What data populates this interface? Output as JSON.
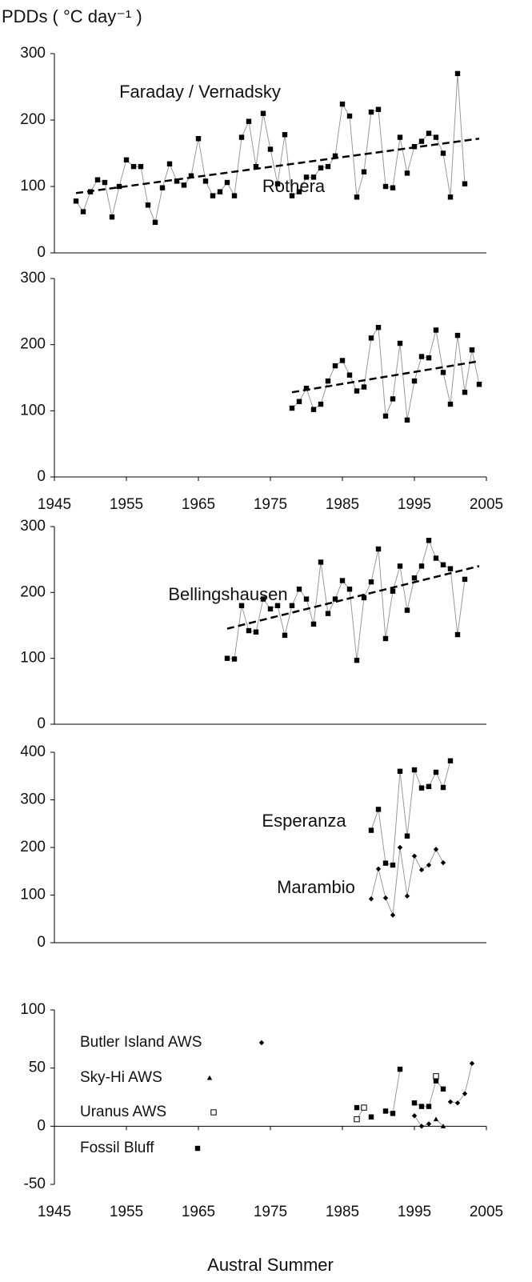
{
  "y_label": "PDDs ( °C day⁻¹ )",
  "x_label": "Austral Summer",
  "chart_data": [
    {
      "type": "line",
      "xlim": [
        1945,
        2005
      ],
      "ylim": [
        0,
        300
      ],
      "yticks": [
        0,
        100,
        200,
        300
      ],
      "series": [
        {
          "name": "Faraday / Vernadsky",
          "color": "#999999",
          "marker": "square",
          "x": [
            1948,
            1949,
            1950,
            1951,
            1952,
            1953,
            1954,
            1955,
            1956,
            1957,
            1958,
            1959,
            1960,
            1961,
            1962,
            1963,
            1964,
            1965,
            1966,
            1967,
            1968,
            1969,
            1970,
            1971,
            1972,
            1973,
            1974,
            1975,
            1976,
            1977,
            1978,
            1979,
            1980,
            1981,
            1982,
            1983,
            1984,
            1985,
            1986,
            1987,
            1988,
            1989,
            1990,
            1991,
            1992,
            1993,
            1994,
            1995,
            1996,
            1997,
            1998,
            1999,
            2000,
            2001,
            2002
          ],
          "values": [
            78,
            62,
            92,
            110,
            106,
            54,
            100,
            140,
            130,
            130,
            72,
            46,
            98,
            134,
            108,
            102,
            116,
            172,
            108,
            86,
            92,
            106,
            86,
            174,
            198,
            130,
            210,
            156,
            104,
            178,
            86,
            92,
            114,
            114,
            128,
            130,
            146,
            224,
            206,
            84,
            122,
            212,
            216,
            100,
            98,
            174,
            120,
            160,
            168,
            180,
            174,
            150,
            84,
            270,
            104
          ]
        },
        {
          "color": "#000000",
          "dashed": true,
          "x": [
            1948,
            2004
          ],
          "values": [
            90,
            172
          ]
        }
      ]
    },
    {
      "type": "line",
      "xlim": [
        1945,
        2005
      ],
      "ylim": [
        0,
        300
      ],
      "yticks": [
        0,
        100,
        200,
        300
      ],
      "xticks": [
        1945,
        1955,
        1965,
        1975,
        1985,
        1995,
        2005
      ],
      "series": [
        {
          "name": "Rothera",
          "color": "#999999",
          "marker": "square",
          "x": [
            1978,
            1979,
            1980,
            1981,
            1982,
            1983,
            1984,
            1985,
            1986,
            1987,
            1988,
            1989,
            1990,
            1991,
            1992,
            1993,
            1994,
            1995,
            1996,
            1997,
            1998,
            1999,
            2000,
            2001,
            2002,
            2003,
            2004
          ],
          "values": [
            104,
            114,
            134,
            102,
            110,
            145,
            168,
            176,
            154,
            130,
            136,
            210,
            226,
            92,
            118,
            202,
            86,
            145,
            182,
            180,
            222,
            158,
            110,
            214,
            128,
            192,
            140
          ]
        },
        {
          "color": "#000000",
          "dashed": true,
          "x": [
            1978,
            2004
          ],
          "values": [
            128,
            175
          ]
        }
      ]
    },
    {
      "type": "line",
      "xlim": [
        1945,
        2005
      ],
      "ylim": [
        0,
        300
      ],
      "yticks": [
        0,
        100,
        200,
        300
      ],
      "series": [
        {
          "name": "Bellingshausen",
          "color": "#999999",
          "marker": "square",
          "x": [
            1969,
            1970,
            1971,
            1972,
            1973,
            1974,
            1975,
            1976,
            1977,
            1978,
            1979,
            1980,
            1981,
            1982,
            1983,
            1984,
            1985,
            1986,
            1987,
            1988,
            1989,
            1990,
            1991,
            1992,
            1993,
            1994,
            1995,
            1996,
            1997,
            1998,
            1999,
            2000,
            2001,
            2002
          ],
          "values": [
            100,
            99,
            180,
            142,
            140,
            190,
            175,
            180,
            135,
            180,
            205,
            190,
            152,
            246,
            168,
            190,
            218,
            205,
            97,
            192,
            216,
            266,
            130,
            202,
            240,
            173,
            222,
            240,
            279,
            252,
            242,
            236,
            136,
            220
          ]
        },
        {
          "color": "#000000",
          "dashed": true,
          "x": [
            1969,
            2004
          ],
          "values": [
            145,
            240
          ]
        }
      ]
    },
    {
      "type": "line",
      "xlim": [
        1945,
        2005
      ],
      "ylim": [
        0,
        400
      ],
      "yticks": [
        0,
        100,
        200,
        300,
        400
      ],
      "series": [
        {
          "name": "Esperanza",
          "color": "#999999",
          "marker": "square",
          "x": [
            1989,
            1990,
            1991,
            1992,
            1993,
            1994,
            1995,
            1996,
            1997,
            1998,
            1999,
            2000
          ],
          "values": [
            236,
            280,
            167,
            163,
            360,
            224,
            363,
            325,
            328,
            358,
            326,
            382
          ]
        },
        {
          "name": "Marambio",
          "color": "#999999",
          "marker": "diamond",
          "x": [
            1989,
            1990,
            1991,
            1992,
            1993,
            1994,
            1995,
            1996,
            1997,
            1998,
            1999
          ],
          "values": [
            92,
            155,
            94,
            58,
            200,
            98,
            182,
            153,
            163,
            196,
            168
          ]
        }
      ]
    },
    {
      "type": "line",
      "xlim": [
        1945,
        2005
      ],
      "ylim": [
        -50,
        100
      ],
      "yticks": [
        -50,
        0,
        50,
        100
      ],
      "xticks": [
        1945,
        1955,
        1965,
        1975,
        1985,
        1995,
        2005
      ],
      "series": [
        {
          "name": "Butler Island AWS",
          "color": "#999999",
          "marker": "diamond",
          "x": [
            1995,
            1996,
            1997,
            1998,
            1999,
            2000,
            2001,
            2002,
            2003
          ],
          "values": [
            9,
            0,
            2,
            null,
            null,
            21,
            20,
            28,
            54
          ]
        },
        {
          "name": "Sky-Hi AWS",
          "color": "#999999",
          "marker": "triangle",
          "x": [
            1998,
            1999
          ],
          "values": [
            6,
            0
          ]
        },
        {
          "name": "Uranus AWS",
          "color": "#999999",
          "marker": "open-square",
          "x": [
            1987,
            1988,
            1989,
            1998
          ],
          "values": [
            6,
            16,
            null,
            43
          ]
        },
        {
          "name": "Fossil Bluff",
          "color": "#999999",
          "marker": "square",
          "x": [
            1987,
            1988,
            1989,
            1990,
            1991,
            1992,
            1993,
            1994,
            1995,
            1996,
            1997,
            1998,
            1999
          ],
          "values": [
            16,
            null,
            8,
            null,
            13,
            11,
            49,
            null,
            20,
            17,
            17,
            39,
            32
          ]
        }
      ]
    }
  ]
}
